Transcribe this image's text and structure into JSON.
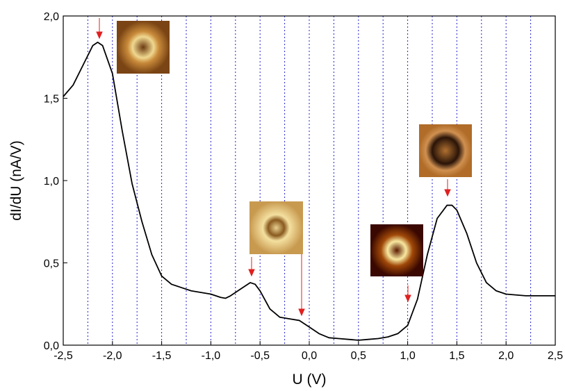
{
  "chart_data": {
    "type": "line",
    "x_label": "U (V)",
    "y_label": "dI/dU (nA/V)",
    "xlim": [
      -2.5,
      2.5
    ],
    "ylim": [
      0,
      2
    ],
    "xticks": [
      {
        "value": -2.5,
        "label": "-2,5"
      },
      {
        "value": -2,
        "label": "-2,0"
      },
      {
        "value": -1.5,
        "label": "-1,5"
      },
      {
        "value": -1,
        "label": "-1,0"
      },
      {
        "value": -0.5,
        "label": "-0,5"
      },
      {
        "value": 0,
        "label": "0,0"
      },
      {
        "value": 0.5,
        "label": "0,5"
      },
      {
        "value": 1,
        "label": "1,0"
      },
      {
        "value": 1.5,
        "label": "1,5"
      },
      {
        "value": 2,
        "label": "2,0"
      },
      {
        "value": 2.5,
        "label": "2,5"
      }
    ],
    "yticks": [
      {
        "value": 0,
        "label": "0,0"
      },
      {
        "value": 0.5,
        "label": "0,5"
      },
      {
        "value": 1,
        "label": "1,0"
      },
      {
        "value": 1.5,
        "label": "1,5"
      },
      {
        "value": 2,
        "label": "2,0"
      }
    ],
    "x_grid": [
      -2.25,
      -2,
      -1.75,
      -1.5,
      -1.25,
      -1,
      -0.75,
      -0.5,
      -0.25,
      0,
      0.25,
      0.5,
      0.75,
      1,
      1.25,
      1.5,
      1.75,
      2,
      2.25
    ],
    "grid_color": "#2222cc",
    "series": [
      {
        "color": "#000000",
        "x": [
          -2.5,
          -2.4,
          -2.3,
          -2.2,
          -2.15,
          -2.1,
          -2.0,
          -1.9,
          -1.8,
          -1.7,
          -1.6,
          -1.5,
          -1.4,
          -1.3,
          -1.2,
          -1.1,
          -1.0,
          -0.9,
          -0.85,
          -0.8,
          -0.7,
          -0.6,
          -0.55,
          -0.5,
          -0.4,
          -0.3,
          -0.2,
          -0.1,
          0.0,
          0.1,
          0.2,
          0.3,
          0.4,
          0.5,
          0.6,
          0.7,
          0.8,
          0.9,
          1.0,
          1.1,
          1.2,
          1.3,
          1.4,
          1.45,
          1.5,
          1.6,
          1.7,
          1.8,
          1.9,
          2.0,
          2.2,
          2.3,
          2.5
        ],
        "values": [
          1.51,
          1.58,
          1.7,
          1.82,
          1.84,
          1.82,
          1.65,
          1.3,
          0.98,
          0.75,
          0.55,
          0.42,
          0.37,
          0.35,
          0.33,
          0.32,
          0.31,
          0.29,
          0.285,
          0.3,
          0.34,
          0.38,
          0.37,
          0.33,
          0.22,
          0.17,
          0.16,
          0.15,
          0.11,
          0.07,
          0.045,
          0.04,
          0.035,
          0.03,
          0.035,
          0.04,
          0.05,
          0.07,
          0.12,
          0.28,
          0.55,
          0.77,
          0.85,
          0.85,
          0.82,
          0.68,
          0.5,
          0.38,
          0.33,
          0.31,
          0.3,
          0.3,
          0.3
        ]
      }
    ]
  }
}
